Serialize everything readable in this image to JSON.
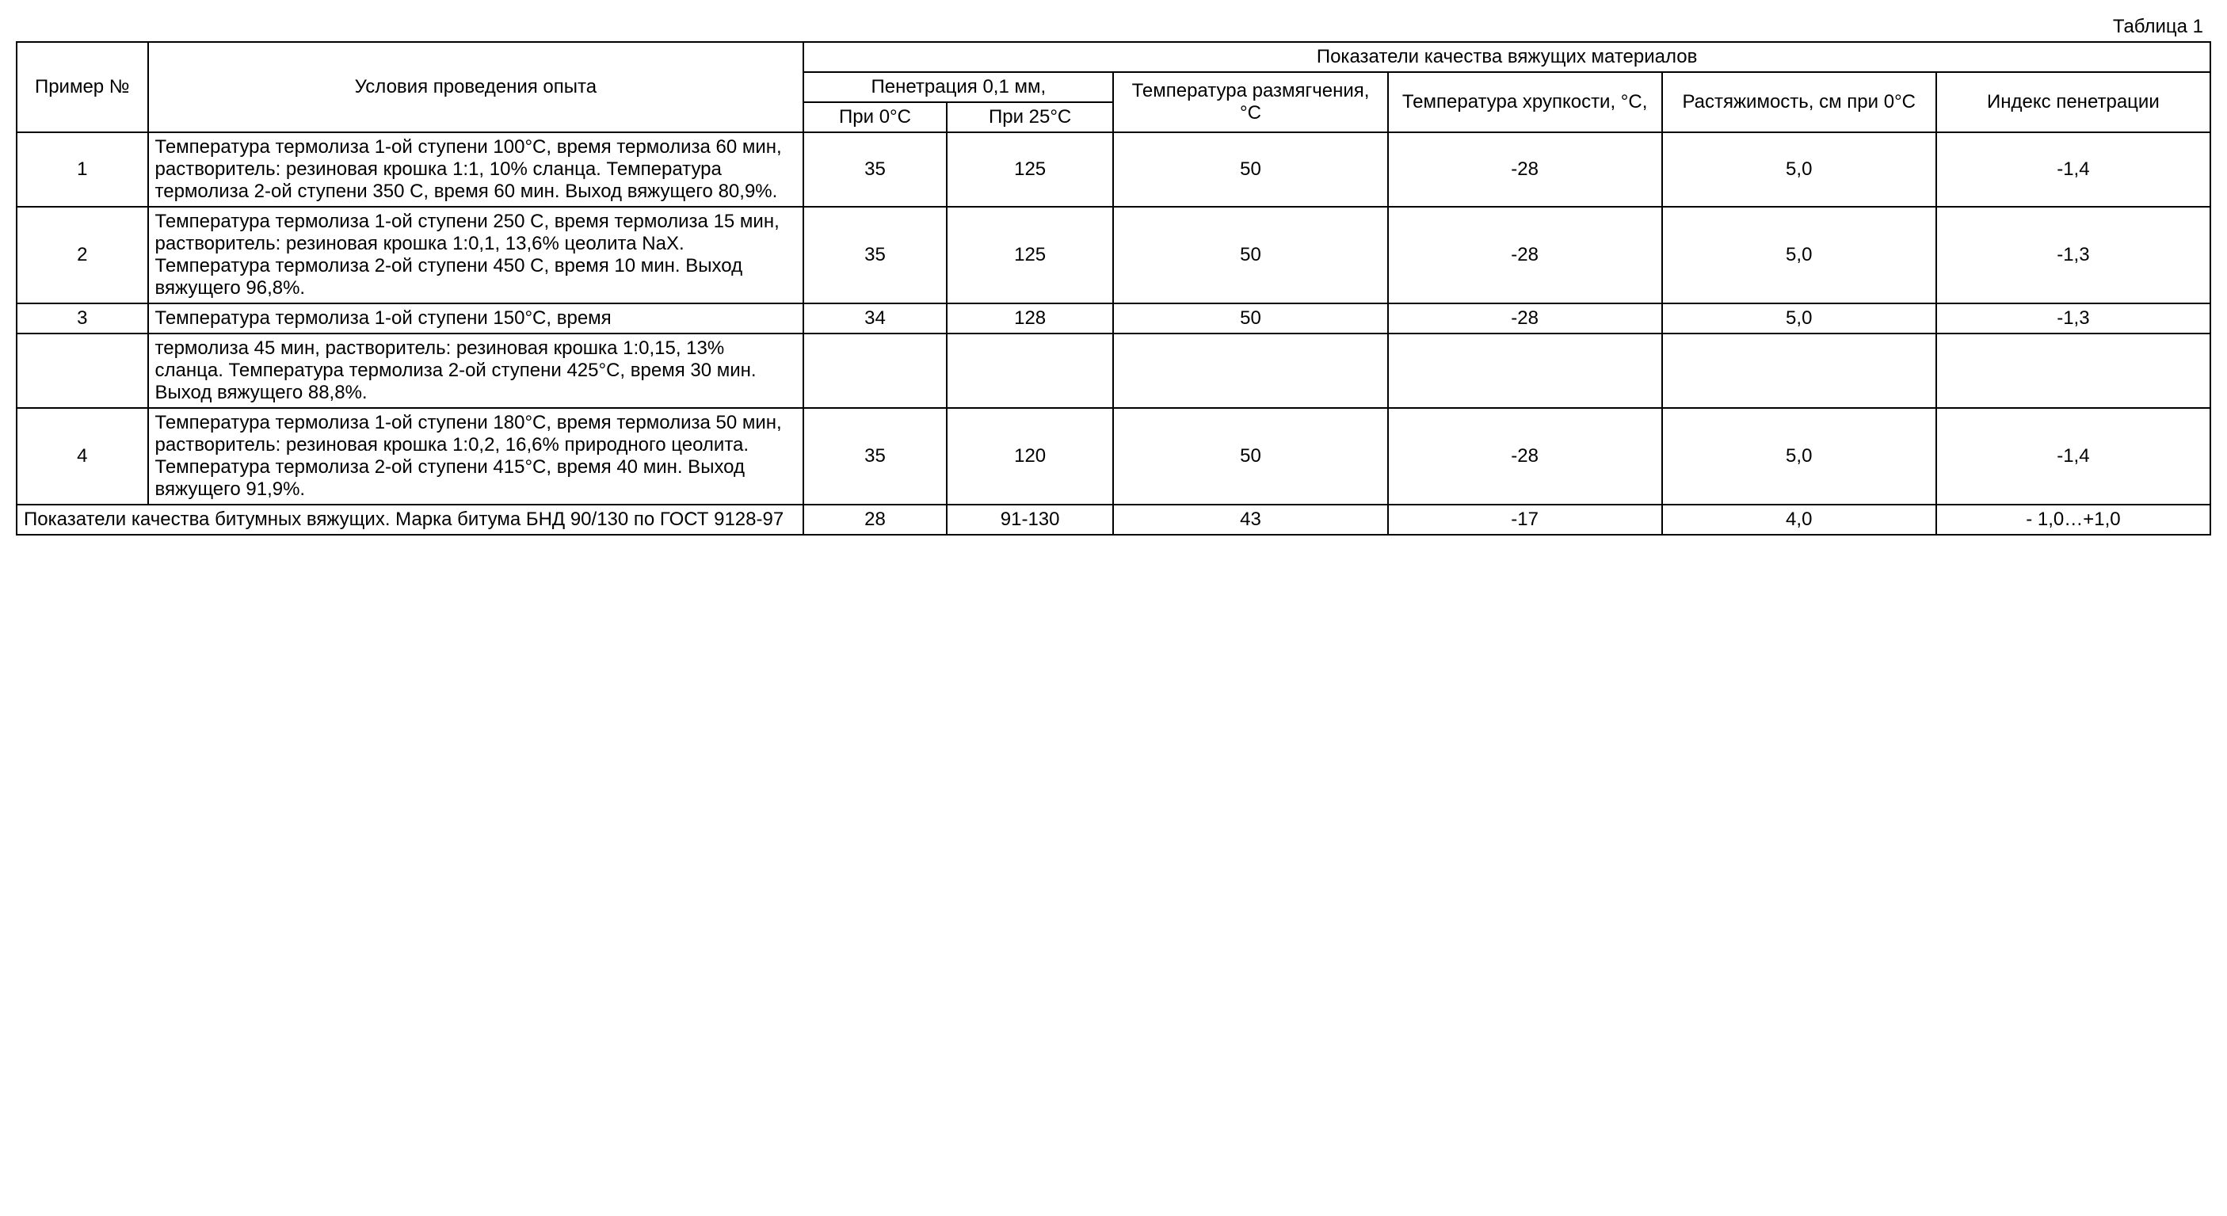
{
  "caption": "Таблица 1",
  "headers": {
    "example": "Пример №",
    "conditions": "Условия проведения опыта",
    "quality_group": "Показатели качества вяжущих материалов",
    "penetration_group": "Пенетрация 0,1 мм,",
    "pen_0c": "При 0°С",
    "pen_25c": "При 25°С",
    "softening": "Температура размягчения, °С",
    "brittleness": "Температура хрупкости, °С,",
    "extensibility": "Растяжимость, см при 0°С",
    "penetration_index": "Индекс пенетрации"
  },
  "rows": [
    {
      "n": "1",
      "cond": "Температура термолиза 1-ой ступени 100°С, время термолиза 60 мин, растворитель: резиновая крошка 1:1, 10% сланца. Температура термолиза 2-ой ступени 350 С, время 60 мин. Выход вяжущего 80,9%.",
      "pen0": "35",
      "pen25": "125",
      "soften": "50",
      "brittle": "-28",
      "ext": "5,0",
      "idx": "-1,4"
    },
    {
      "n": "2",
      "cond": "Температура термолиза 1-ой ступени 250 С, время термолиза 15 мин, растворитель: резиновая крошка 1:0,1, 13,6% цеолита NaX. Температура термолиза 2-ой ступени 450 С, время 10 мин. Выход вяжущего 96,8%.",
      "pen0": "35",
      "pen25": "125",
      "soften": "50",
      "brittle": "-28",
      "ext": "5,0",
      "idx": "-1,3"
    },
    {
      "n": "3",
      "cond": "Температура термолиза 1-ой ступени 150°С, время",
      "pen0": "34",
      "pen25": "128",
      "soften": "50",
      "brittle": "-28",
      "ext": "5,0",
      "idx": "-1,3"
    },
    {
      "n": "",
      "cond": "термолиза 45 мин, растворитель: резиновая крошка 1:0,15, 13% сланца. Температура термолиза 2-ой ступени 425°С, время 30 мин. Выход вяжущего 88,8%.",
      "pen0": "",
      "pen25": "",
      "soften": "",
      "brittle": "",
      "ext": "",
      "idx": ""
    },
    {
      "n": "4",
      "cond": "Температура термолиза 1-ой ступени 180°С, время термолиза 50 мин, растворитель: резиновая крошка 1:0,2, 16,6% природного цеолита. Температура термолиза 2-ой ступени 415°С, время 40 мин. Выход вяжущего 91,9%.",
      "pen0": "35",
      "pen25": "120",
      "soften": "50",
      "brittle": "-28",
      "ext": "5,0",
      "idx": "-1,4"
    }
  ],
  "footer": {
    "cond": "Показатели качества битумных вяжущих. Марка битума БНД 90/130 по ГОСТ 9128-97",
    "pen0": "28",
    "pen25": "91-130",
    "soften": "43",
    "brittle": "-17",
    "ext": "4,0",
    "idx": "- 1,0…+1,0"
  }
}
